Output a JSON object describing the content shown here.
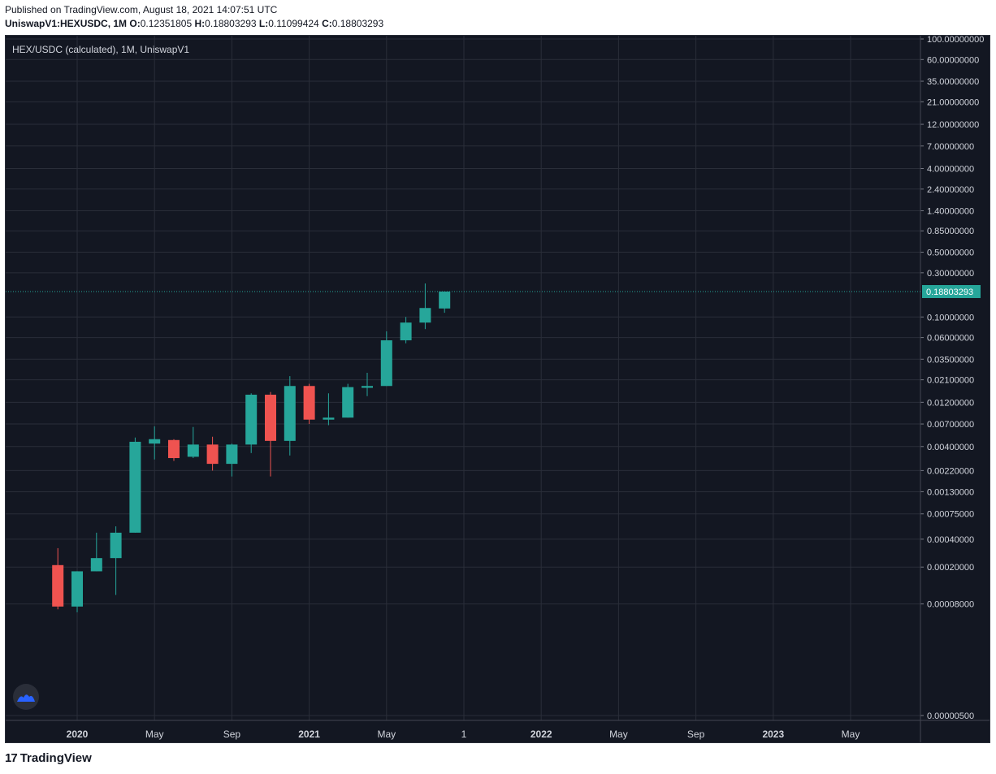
{
  "header": {
    "published": "Published on TradingView.com, August 18, 2021 14:07:51 UTC",
    "symbol": "UniswapV1:HEXUSDC, 1M",
    "o_label": "O:",
    "o_value": "0.12351805",
    "h_label": "H:",
    "h_value": "0.18803293",
    "l_label": "L:",
    "l_value": "0.11099424",
    "c_label": "C:",
    "c_value": "0.18803293"
  },
  "footer": {
    "brand": "TradingView",
    "mark": "17"
  },
  "colors": {
    "background": "#131722",
    "grid": "#2a2e39",
    "up": "#26a69a",
    "down": "#ef5350",
    "text": "#d1d4dc",
    "price_label": "#26a69a"
  },
  "chart_data": {
    "type": "candlestick",
    "title": "HEX/USDC (calculated), 1M, UniswapV1",
    "scale": "log",
    "ylim": [
      4e-06,
      120
    ],
    "grid": true,
    "y_ticks": [
      "100.00000000",
      "60.00000000",
      "35.00000000",
      "21.00000000",
      "12.00000000",
      "7.00000000",
      "4.00000000",
      "2.40000000",
      "1.40000000",
      "0.85000000",
      "0.50000000",
      "0.30000000",
      "0.10000000",
      "0.06000000",
      "0.03500000",
      "0.02100000",
      "0.01200000",
      "0.00700000",
      "0.00400000",
      "0.00220000",
      "0.00130000",
      "0.00075000",
      "0.00040000",
      "0.00020000",
      "0.00008000",
      "0.00000500"
    ],
    "x_ticks": [
      {
        "label": "2020",
        "bold": true,
        "month": 0
      },
      {
        "label": "May",
        "bold": false,
        "month": 4
      },
      {
        "label": "Sep",
        "bold": false,
        "month": 8
      },
      {
        "label": "2021",
        "bold": true,
        "month": 12
      },
      {
        "label": "May",
        "bold": false,
        "month": 16
      },
      {
        "label": "1",
        "bold": false,
        "month": 20
      },
      {
        "label": "2022",
        "bold": true,
        "month": 24
      },
      {
        "label": "May",
        "bold": false,
        "month": 28
      },
      {
        "label": "Sep",
        "bold": false,
        "month": 32
      },
      {
        "label": "2023",
        "bold": true,
        "month": 36
      },
      {
        "label": "May",
        "bold": false,
        "month": 40
      }
    ],
    "current_price": "0.18803293",
    "candles": [
      {
        "date": "2019-12",
        "open": 0.00021,
        "high": 0.00032,
        "low": 7e-05,
        "close": 7.5e-05
      },
      {
        "date": "2020-01",
        "open": 7.5e-05,
        "high": 0.00018,
        "low": 6.5e-05,
        "close": 0.00018
      },
      {
        "date": "2020-02",
        "open": 0.00018,
        "high": 0.00047,
        "low": 0.00018,
        "close": 0.00025
      },
      {
        "date": "2020-03",
        "open": 0.00025,
        "high": 0.00055,
        "low": 0.0001,
        "close": 0.00047
      },
      {
        "date": "2020-04",
        "open": 0.00047,
        "high": 0.005,
        "low": 0.00047,
        "close": 0.0045
      },
      {
        "date": "2020-05",
        "open": 0.0043,
        "high": 0.0066,
        "low": 0.0029,
        "close": 0.0048
      },
      {
        "date": "2020-06",
        "open": 0.0047,
        "high": 0.0048,
        "low": 0.0028,
        "close": 0.003
      },
      {
        "date": "2020-07",
        "open": 0.0031,
        "high": 0.0065,
        "low": 0.003,
        "close": 0.0042
      },
      {
        "date": "2020-08",
        "open": 0.0042,
        "high": 0.0051,
        "low": 0.0022,
        "close": 0.0026
      },
      {
        "date": "2020-09",
        "open": 0.0026,
        "high": 0.0043,
        "low": 0.0019,
        "close": 0.0042
      },
      {
        "date": "2020-10",
        "open": 0.0042,
        "high": 0.015,
        "low": 0.0034,
        "close": 0.0145
      },
      {
        "date": "2020-11",
        "open": 0.0145,
        "high": 0.0155,
        "low": 0.0019,
        "close": 0.0046
      },
      {
        "date": "2020-12",
        "open": 0.0046,
        "high": 0.023,
        "low": 0.0032,
        "close": 0.018
      },
      {
        "date": "2021-01",
        "open": 0.018,
        "high": 0.019,
        "low": 0.007,
        "close": 0.0078
      },
      {
        "date": "2021-02",
        "open": 0.0078,
        "high": 0.015,
        "low": 0.0068,
        "close": 0.0082
      },
      {
        "date": "2021-03",
        "open": 0.0082,
        "high": 0.019,
        "low": 0.0082,
        "close": 0.0175
      },
      {
        "date": "2021-04",
        "open": 0.0172,
        "high": 0.025,
        "low": 0.014,
        "close": 0.018
      },
      {
        "date": "2021-05",
        "open": 0.018,
        "high": 0.07,
        "low": 0.018,
        "close": 0.056
      },
      {
        "date": "2021-06",
        "open": 0.056,
        "high": 0.1,
        "low": 0.052,
        "close": 0.087
      },
      {
        "date": "2021-07",
        "open": 0.087,
        "high": 0.23,
        "low": 0.074,
        "close": 0.125
      },
      {
        "date": "2021-08",
        "open": 0.12351805,
        "high": 0.18803293,
        "low": 0.11099424,
        "close": 0.18803293
      }
    ]
  }
}
